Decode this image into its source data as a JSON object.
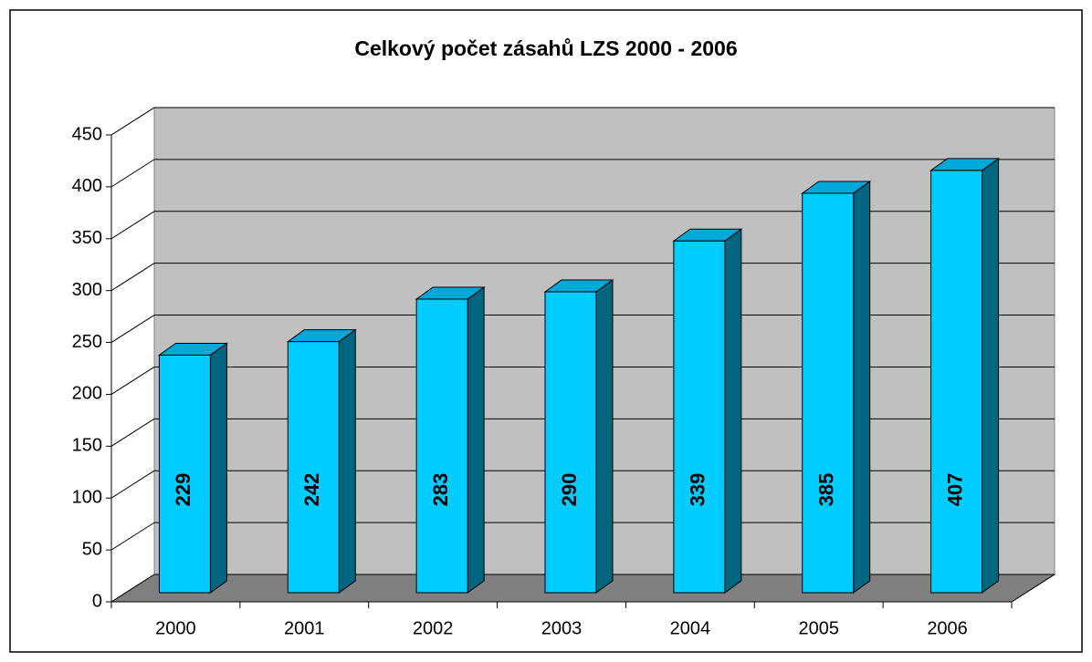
{
  "chart_data": {
    "type": "bar3d",
    "title": "Celkový počet zásahů LZS 2000 - 2006",
    "categories": [
      "2000",
      "2001",
      "2002",
      "2003",
      "2004",
      "2005",
      "2006"
    ],
    "values": [
      229,
      242,
      283,
      290,
      339,
      385,
      407
    ],
    "color": "#00ccff",
    "ylim": [
      0,
      450
    ],
    "yticks": [
      0,
      50,
      100,
      150,
      200,
      250,
      300,
      350,
      400,
      450
    ],
    "grid": true
  }
}
